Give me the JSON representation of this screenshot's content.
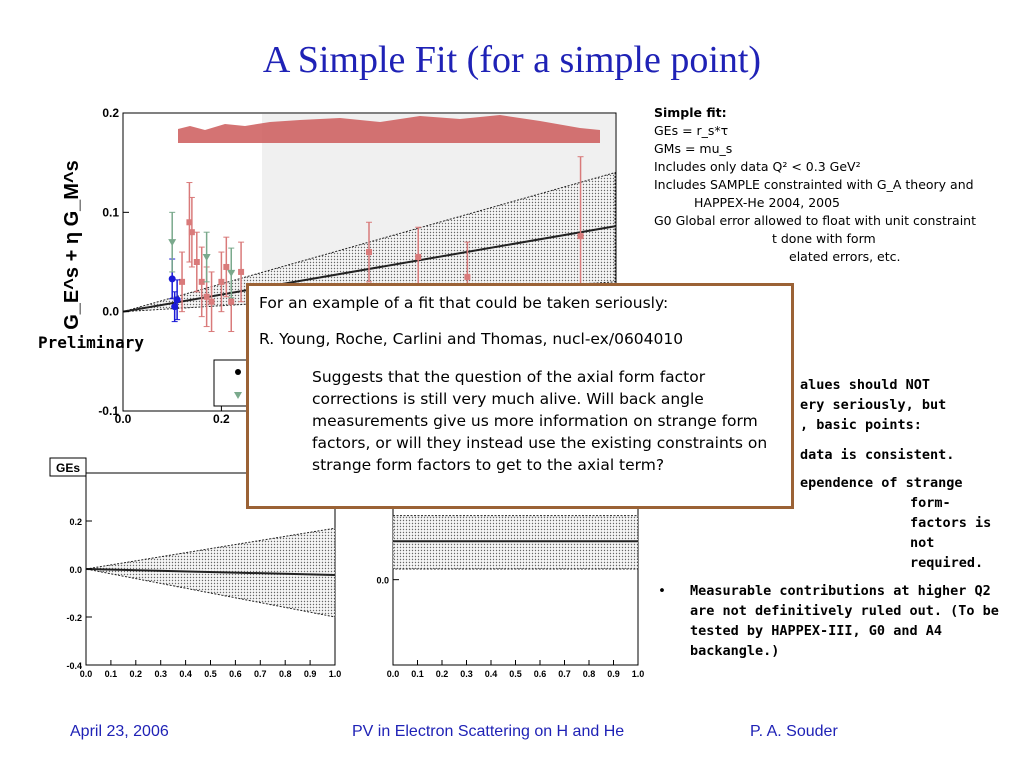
{
  "slide": {
    "title": "A Simple Fit (for a simple point)",
    "preliminary": "Preliminary"
  },
  "notes": {
    "heading": "Simple fit:",
    "lines": [
      "GEs = r_s*τ",
      "GMs = mu_s",
      "Includes only data Q² < 0.3 GeV²",
      "Includes SAMPLE constrainted with G_A theory and HAPPEX-He 2004, 2005",
      "G0 Global error allowed to float with unit constraint",
      "t done with form",
      "elated errors, etc."
    ]
  },
  "conclusions": {
    "lead": "alues should NOT",
    "line2": "ery seriously, but",
    "line3": ", basic points:",
    "bullet1": "data is consistent.",
    "bullet2": "ependence of strange form-factors is not required.",
    "bullet3": "Measurable contributions at higher Q2 are not definitively ruled out. (To be tested by HAPPEX-III, G0 and A4 backangle.)",
    "bullet_symbol": "•"
  },
  "overlay": {
    "line1": "For an example of a fit that could be taken seriously:",
    "line2": "R. Young, Roche, Carlini and Thomas, nucl-ex/0604010",
    "paragraph": "Suggests that the question of the axial form factor corrections is still very much alive. Will back angle measurements give us more information on strange form factors, or will they instead use the existing constraints on strange form factors to get to the axial term?"
  },
  "footer": {
    "date": "April 23, 2006",
    "event": "PV in Electron Scattering on H and He",
    "author": "P. A. Souder"
  },
  "colors": {
    "title": "#1f22b6",
    "footer": "#1f22b6",
    "square_points": "#d97a7a",
    "circle_points": "#1a1ad6",
    "triangle_points": "#7aa98c",
    "error_band_top": "#c85050",
    "overlay_border": "#9b6235"
  },
  "chart_data": [
    {
      "type": "scatter",
      "title": "",
      "ylabel": "G_E^s + η G_M^s",
      "xlim": [
        0,
        1.0
      ],
      "ylim": [
        -0.1,
        0.2
      ],
      "xticks": [
        "0.0",
        "0.2"
      ],
      "yticks": [
        "-0.1",
        "0.0",
        "0.1",
        "0.2"
      ],
      "fit_line": {
        "x": [
          0.0,
          1.0
        ],
        "y": [
          0.0,
          0.086
        ]
      },
      "band": {
        "x": [
          0.0,
          1.0
        ],
        "upper": [
          0.0,
          0.14
        ],
        "lower": [
          0.0,
          0.03
        ]
      },
      "series": [
        {
          "marker": "square",
          "x": [
            0.12,
            0.135,
            0.14,
            0.15,
            0.16,
            0.17,
            0.18,
            0.2,
            0.21,
            0.22,
            0.24
          ],
          "y": [
            0.03,
            0.09,
            0.08,
            0.05,
            0.03,
            0.015,
            0.01,
            0.03,
            0.045,
            0.01,
            0.04
          ],
          "yerr": [
            0.03,
            0.04,
            0.035,
            0.03,
            0.035,
            0.03,
            0.03,
            0.03,
            0.03,
            0.03,
            0.03
          ]
        },
        {
          "marker": "square",
          "x": [
            0.5,
            0.6,
            0.7,
            0.93
          ],
          "y": [
            0.06,
            0.055,
            0.035,
            0.076
          ],
          "yerr": [
            0.03,
            0.03,
            0.035,
            0.08
          ]
        },
        {
          "marker": "circle",
          "x": [
            0.1,
            0.105,
            0.11
          ],
          "y": [
            0.033,
            0.005,
            0.012
          ],
          "yerr": [
            0.02,
            0.015,
            0.02
          ]
        },
        {
          "marker": "triangle",
          "x": [
            0.1,
            0.17,
            0.22
          ],
          "y": [
            0.07,
            0.055,
            0.039
          ],
          "yerr": [
            0.03,
            0.025,
            0.025
          ]
        }
      ]
    },
    {
      "type": "line",
      "title": "GEs",
      "xlim": [
        0,
        1.0
      ],
      "ylim": [
        -0.4,
        0.4
      ],
      "xticks": [
        "0.0",
        "0.1",
        "0.2",
        "0.3",
        "0.4",
        "0.5",
        "0.6",
        "0.7",
        "0.8",
        "0.9",
        "1.0"
      ],
      "yticks": [
        "-0.4",
        "-0.2",
        "0.0",
        "0.2"
      ],
      "fit_line": {
        "x": [
          0.0,
          1.0
        ],
        "y": [
          0.0,
          -0.025
        ]
      },
      "band": {
        "x": [
          0.0,
          1.0
        ],
        "upper": [
          0.0,
          0.17
        ],
        "lower": [
          0.0,
          -0.2
        ]
      }
    },
    {
      "type": "line",
      "title": "",
      "xlim": [
        0,
        1.0
      ],
      "ylim": [
        -0.2,
        0.25
      ],
      "xticks": [
        "0.0",
        "0.1",
        "0.2",
        "0.3",
        "0.4",
        "0.5",
        "0.6",
        "0.7",
        "0.8",
        "0.9",
        "1.0"
      ],
      "yticks": [
        "0.0"
      ],
      "fit_line": {
        "x": [
          0.0,
          1.0
        ],
        "y": [
          0.09,
          0.09
        ]
      },
      "band": {
        "x": [
          0.0,
          1.0
        ],
        "upper": [
          0.15,
          0.15
        ],
        "lower": [
          0.025,
          0.025
        ]
      }
    }
  ]
}
